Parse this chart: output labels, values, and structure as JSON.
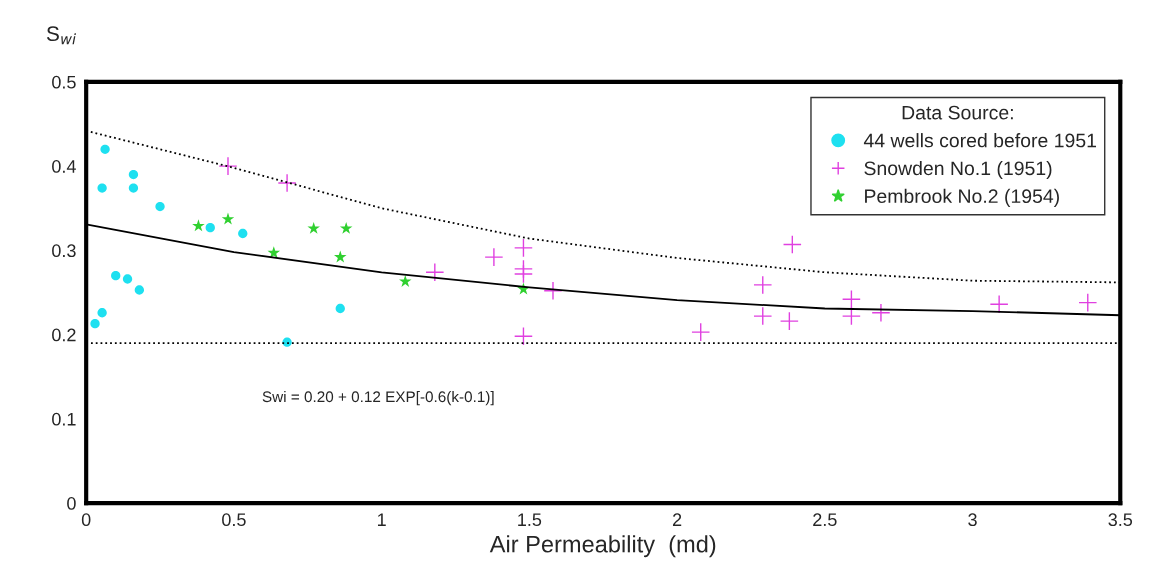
{
  "chart_data": {
    "type": "scatter",
    "xlabel": "Air Permeability  (md)",
    "ylabel": "S$_{wi}$",
    "legend_title": "Data Source:",
    "legend": "top right",
    "grid": false,
    "xlim": [
      0,
      3.5
    ],
    "xticks": [
      0,
      0.5,
      1,
      1.5,
      2,
      2.5,
      3,
      3.5
    ],
    "ylim": [
      0,
      0.5
    ],
    "yticks": [
      0,
      0.1,
      0.2,
      0.3,
      0.4,
      0.5
    ],
    "annotations": [
      "Swi = 0.20 + 0.12 EXP[-0.6(k-0.1)]"
    ],
    "ref_lines": [
      {
        "axis": "y",
        "value": 0.19,
        "color": "#000000",
        "line_style": "dotted"
      }
    ],
    "series": [
      {
        "name": "44 wells cored before 1951",
        "marker": "circle",
        "color": "#1ee0f0",
        "x": [
          0.064,
          0.054,
          0.16,
          0.16,
          0.25,
          0.42,
          0.53,
          0.1,
          0.14,
          0.18,
          0.054,
          0.03,
          0.86,
          0.68
        ],
        "values": [
          0.42,
          0.374,
          0.39,
          0.374,
          0.352,
          0.327,
          0.32,
          0.27,
          0.266,
          0.253,
          0.226,
          0.213,
          0.231,
          0.191
        ]
      },
      {
        "name": "Snowden No.1 (1951)",
        "marker": "cross",
        "color": "#e040e0",
        "x": [
          0.48,
          0.68,
          1.18,
          1.38,
          1.48,
          1.48,
          1.48,
          1.58,
          1.48,
          2.08,
          2.29,
          2.29,
          2.39,
          2.38,
          2.59,
          2.59,
          2.69,
          3.09,
          3.39
        ],
        "values": [
          0.4,
          0.38,
          0.274,
          0.292,
          0.303,
          0.278,
          0.272,
          0.252,
          0.198,
          0.203,
          0.259,
          0.222,
          0.307,
          0.216,
          0.242,
          0.222,
          0.226,
          0.236,
          0.238
        ]
      },
      {
        "name": "Pembrook No.2 (1954)",
        "marker": "star",
        "color": "#30d030",
        "x": [
          0.38,
          0.48,
          0.635,
          0.77,
          0.88,
          0.86,
          1.08,
          1.48
        ],
        "values": [
          0.329,
          0.337,
          0.297,
          0.326,
          0.326,
          0.292,
          0.263,
          0.254
        ]
      },
      {
        "type": "line",
        "line_style": "solid",
        "color": "#000000",
        "x": [
          0,
          0.5,
          1,
          1.5,
          2,
          2.5,
          3,
          3.5
        ],
        "values": [
          0.331,
          0.298,
          0.274,
          0.256,
          0.241,
          0.231,
          0.228,
          0.223
        ]
      },
      {
        "type": "line",
        "line_style": "dotted",
        "color": "#000000",
        "x": [
          0,
          0.5,
          1,
          1.5,
          2,
          2.5,
          3,
          3.5
        ],
        "values": [
          0.442,
          0.398,
          0.35,
          0.314,
          0.291,
          0.274,
          0.264,
          0.262
        ]
      }
    ]
  }
}
